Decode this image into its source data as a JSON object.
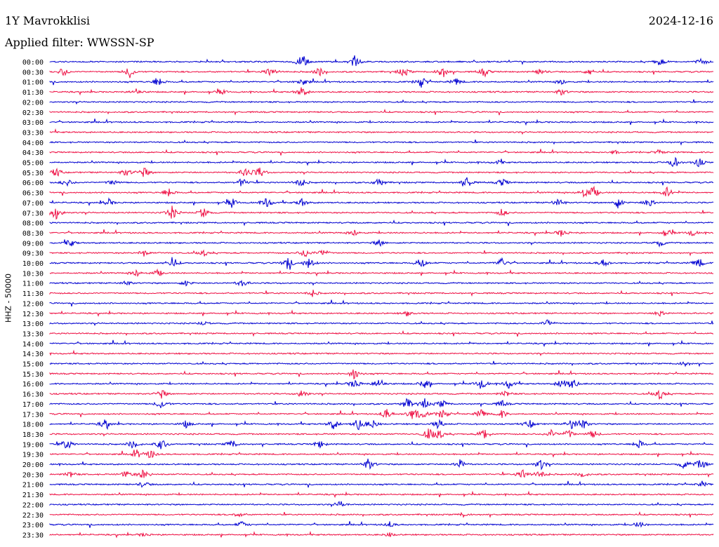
{
  "header": {
    "station": "1Y Mavrokklisi",
    "date": "2024-12-16",
    "filter": "Applied filter: WWSSN-SP"
  },
  "chart_data": {
    "type": "line",
    "ylabel": "HHZ - 50000",
    "row_labels": [
      "00:00",
      "00:30",
      "01:00",
      "01:30",
      "02:00",
      "02:30",
      "03:00",
      "03:30",
      "04:00",
      "04:30",
      "05:00",
      "05:30",
      "06:00",
      "06:30",
      "07:00",
      "07:30",
      "08:00",
      "08:30",
      "09:00",
      "09:30",
      "10:00",
      "10:30",
      "11:00",
      "11:30",
      "12:00",
      "12:30",
      "13:00",
      "13:30",
      "14:00",
      "14:30",
      "15:00",
      "15:30",
      "16:00",
      "16:30",
      "17:00",
      "17:30",
      "18:00",
      "18:30",
      "19:00",
      "19:30",
      "20:00",
      "20:30",
      "21:00",
      "21:30",
      "22:00",
      "22:30",
      "23:00",
      "23:30"
    ],
    "row_colors": [
      "#0000d0",
      "#ee1044"
    ],
    "legend": "none",
    "grid": false
  }
}
